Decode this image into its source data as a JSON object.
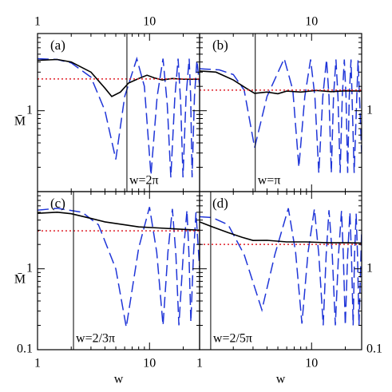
{
  "chart_data": [
    {
      "type": "line",
      "panel_label": "(a)",
      "xscale": "log",
      "yscale": "log",
      "xlim": [
        1,
        28
      ],
      "ylim": [
        0.1,
        9
      ],
      "xticks": [
        1,
        10
      ],
      "yticks": [
        1
      ],
      "xminor": [
        2,
        3,
        4,
        5,
        6,
        7,
        8,
        9,
        20
      ],
      "yminor": [
        0.2,
        0.3,
        0.4,
        0.5,
        0.6,
        0.7,
        0.8,
        0.9,
        2,
        3,
        4,
        5,
        6,
        7,
        8
      ],
      "x_tick_side": "top",
      "y_tick_side": "left",
      "ylabel": "M̄",
      "vlines": [
        {
          "value": 6.2832,
          "label": "w=2π"
        }
      ],
      "series": [
        {
          "color": "#1f35d8",
          "style": "dashed",
          "x": [
            1,
            1.5,
            2,
            3,
            4,
            5,
            6,
            7.7,
            9,
            10.3,
            11.7,
            13.2,
            14.4,
            15.5,
            16.8,
            18,
            19,
            19.9,
            21.2,
            22.6,
            23.3,
            24,
            25.2,
            26.5,
            28
          ],
          "values": [
            4.4,
            4.3,
            3.9,
            2.6,
            1.0,
            0.25,
            1.5,
            4.4,
            2.0,
            0.16,
            1.5,
            4.4,
            1.2,
            0.15,
            1.4,
            4.4,
            1.2,
            0.15,
            1.5,
            4.4,
            1.5,
            0.15,
            1.5,
            4.2,
            2.0
          ]
        },
        {
          "color": "#000000",
          "style": "solid",
          "x": [
            1,
            1.5,
            2,
            3,
            4,
            4.6,
            5.5,
            6.5,
            8,
            9.5,
            11,
            13,
            16,
            20,
            28
          ],
          "values": [
            4.2,
            4.3,
            4.0,
            3.0,
            1.9,
            1.5,
            1.7,
            2.2,
            2.5,
            2.75,
            2.55,
            2.4,
            2.5,
            2.45,
            2.45
          ]
        },
        {
          "color": "#e0202a",
          "style": "dotted",
          "x": [
            1,
            28
          ],
          "values": [
            2.47,
            2.47
          ]
        }
      ]
    },
    {
      "type": "line",
      "panel_label": "(b)",
      "xscale": "log",
      "yscale": "log",
      "xlim": [
        1,
        28
      ],
      "ylim": [
        0.1,
        9
      ],
      "xticks": [
        10
      ],
      "yticks": [
        1
      ],
      "xminor": [
        2,
        3,
        4,
        5,
        6,
        7,
        8,
        9,
        20
      ],
      "yminor": [
        0.2,
        0.3,
        0.4,
        0.5,
        0.6,
        0.7,
        0.8,
        0.9,
        2,
        3,
        4,
        5,
        6,
        7,
        8
      ],
      "x_tick_side": "top",
      "y_tick_side": "right",
      "vlines": [
        {
          "value": 3.1416,
          "label": "w=π"
        }
      ],
      "series": [
        {
          "color": "#1f35d8",
          "style": "dashed",
          "x": [
            1,
            1.5,
            2,
            2.5,
            3.1,
            4,
            5.7,
            6.8,
            7.7,
            8.7,
            9.8,
            10.7,
            11.6,
            12.6,
            13.6,
            14.3,
            15,
            15.7,
            16.5,
            17.2,
            18,
            18.8,
            19.6,
            20.3,
            21,
            21.7,
            22.5,
            24,
            26,
            28
          ],
          "values": [
            3.3,
            3.2,
            2.8,
            1.8,
            0.35,
            1.5,
            4.4,
            1.8,
            0.2,
            1.5,
            4.3,
            1.5,
            0.17,
            1.5,
            4.3,
            1.5,
            0.17,
            1.5,
            4.3,
            1.5,
            0.17,
            1.5,
            4.3,
            1.5,
            0.17,
            1.5,
            4.3,
            0.17,
            4.2,
            0.3
          ]
        },
        {
          "color": "#000000",
          "style": "solid",
          "x": [
            1,
            1.4,
            2,
            2.6,
            3.1,
            4,
            5,
            6,
            8,
            11,
            15,
            20,
            28
          ],
          "values": [
            3.1,
            3.0,
            2.4,
            1.9,
            1.64,
            1.7,
            1.62,
            1.75,
            1.7,
            1.78,
            1.72,
            1.76,
            1.75
          ]
        },
        {
          "color": "#e0202a",
          "style": "dotted",
          "x": [
            1,
            28
          ],
          "values": [
            1.8,
            1.8
          ]
        }
      ]
    },
    {
      "type": "line",
      "panel_label": "(c)",
      "xscale": "log",
      "yscale": "log",
      "xlim": [
        1,
        28
      ],
      "ylim": [
        0.1,
        9
      ],
      "xticks": [
        1,
        10
      ],
      "yticks": [
        0.1,
        1
      ],
      "xminor": [
        2,
        3,
        4,
        5,
        6,
        7,
        8,
        9,
        20
      ],
      "yminor": [
        0.2,
        0.3,
        0.4,
        0.5,
        0.6,
        0.7,
        0.8,
        0.9,
        2,
        3,
        4,
        5,
        6,
        7,
        8
      ],
      "x_tick_side": "bottom",
      "y_tick_side": "left",
      "xlabel": "w",
      "ylabel": "M̄",
      "vlines": [
        {
          "value": 2.0944,
          "label": "w=2/3π"
        }
      ],
      "series": [
        {
          "color": "#1f35d8",
          "style": "dashed",
          "x": [
            1,
            1.5,
            2.5,
            3.5,
            5,
            6.2,
            8,
            10,
            11.6,
            13.2,
            14.6,
            16,
            17.2,
            18.3,
            20,
            21.6,
            22.5,
            23.4,
            24.7,
            26,
            28
          ],
          "values": [
            5.3,
            5.6,
            5.0,
            3.5,
            1.0,
            0.19,
            1.8,
            5.8,
            1.6,
            0.2,
            1.6,
            5.5,
            1.5,
            0.2,
            1.5,
            5.3,
            1.5,
            0.22,
            1.5,
            5.0,
            1.0
          ]
        },
        {
          "color": "#000000",
          "style": "solid",
          "x": [
            1,
            1.5,
            2,
            3,
            4,
            6,
            8,
            12,
            18,
            28
          ],
          "values": [
            4.85,
            5.0,
            4.8,
            4.2,
            3.8,
            3.5,
            3.3,
            3.2,
            3.1,
            3.0
          ]
        },
        {
          "color": "#e0202a",
          "style": "dotted",
          "x": [
            1,
            28
          ],
          "values": [
            2.95,
            2.95
          ]
        }
      ]
    },
    {
      "type": "line",
      "panel_label": "(d)",
      "xscale": "log",
      "yscale": "log",
      "xlim": [
        1,
        28
      ],
      "ylim": [
        0.1,
        9
      ],
      "xticks": [
        1,
        10
      ],
      "yticks": [
        0.1,
        1
      ],
      "xminor": [
        2,
        3,
        4,
        5,
        6,
        7,
        8,
        9,
        20
      ],
      "yminor": [
        0.2,
        0.3,
        0.4,
        0.5,
        0.6,
        0.7,
        0.8,
        0.9,
        2,
        3,
        4,
        5,
        6,
        7,
        8
      ],
      "x_tick_side": "bottom",
      "y_tick_side": "right",
      "xlabel": "w",
      "vlines": [
        {
          "value": 1.2566,
          "label": "w=2/5π"
        }
      ],
      "series": [
        {
          "color": "#1f35d8",
          "style": "dashed",
          "x": [
            1,
            1.3,
            1.8,
            2.5,
            3.6,
            4.7,
            6.2,
            7.2,
            8.2,
            9.3,
            10.6,
            11.6,
            12.7,
            13.5,
            14.3,
            15.3,
            16.3,
            17.4,
            18.5,
            19.2,
            20,
            21,
            22,
            22.7,
            23.5,
            24.2,
            25,
            25.7,
            26.5,
            28
          ],
          "values": [
            4.4,
            4.3,
            3.5,
            1.5,
            0.31,
            1.5,
            5.6,
            1.6,
            0.21,
            1.6,
            5.5,
            1.5,
            0.2,
            1.5,
            5.3,
            1.5,
            0.2,
            1.5,
            5.2,
            1.5,
            0.2,
            1.5,
            5.0,
            1.5,
            0.2,
            1.5,
            4.8,
            1.5,
            0.2,
            3.0
          ]
        },
        {
          "color": "#000000",
          "style": "solid",
          "x": [
            1,
            1.3,
            1.8,
            2.4,
            3,
            4,
            6,
            9,
            14,
            20,
            28
          ],
          "values": [
            3.8,
            3.3,
            2.8,
            2.45,
            2.24,
            2.25,
            2.15,
            2.15,
            2.1,
            2.1,
            2.08
          ]
        },
        {
          "color": "#e0202a",
          "style": "dotted",
          "x": [
            1,
            28
          ],
          "values": [
            2.0,
            2.0
          ]
        }
      ]
    }
  ]
}
